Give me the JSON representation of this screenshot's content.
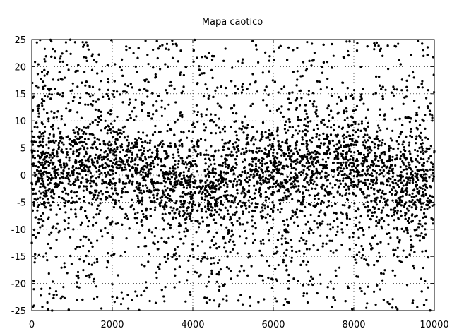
{
  "chart_data": {
    "type": "scatter",
    "title": "Mapa caotico",
    "xlabel": "",
    "ylabel": "",
    "xlim": [
      0,
      10000
    ],
    "ylim": [
      -25,
      25
    ],
    "x_ticks": [
      0,
      2000,
      4000,
      6000,
      8000,
      10000
    ],
    "y_ticks": [
      25,
      20,
      15,
      10,
      5,
      0,
      -5,
      -10,
      -15,
      -20,
      -25
    ],
    "grid": true,
    "legend": "none",
    "marker_color": "#000000",
    "series": [
      {
        "points_sampled": [
          [
            0,
            4.6
          ],
          [
            120,
            -1.2
          ],
          [
            260,
            12.8
          ],
          [
            410,
            -8.1
          ],
          [
            560,
            0.7
          ],
          [
            700,
            21.5
          ],
          [
            850,
            -3.4
          ],
          [
            1000,
            6.2
          ],
          [
            1150,
            -17.9
          ],
          [
            1300,
            1.9
          ],
          [
            1450,
            9.4
          ],
          [
            1600,
            -0.6
          ],
          [
            1750,
            -11.3
          ],
          [
            1900,
            15.7
          ],
          [
            2050,
            2.8
          ],
          [
            2200,
            -5.9
          ],
          [
            2350,
            23.1
          ],
          [
            2500,
            -1.7
          ],
          [
            2650,
            7.9
          ],
          [
            2800,
            -21.4
          ],
          [
            2950,
            0.3
          ],
          [
            3100,
            13.6
          ],
          [
            3250,
            -7.2
          ],
          [
            3400,
            3.5
          ],
          [
            3550,
            -14.8
          ],
          [
            3700,
            18.9
          ],
          [
            3850,
            -2.4
          ],
          [
            4000,
            5.1
          ],
          [
            4150,
            -9.6
          ],
          [
            4300,
            0.9
          ],
          [
            4450,
            11.2
          ],
          [
            4600,
            -19.7
          ],
          [
            4750,
            2.2
          ],
          [
            4900,
            -4.8
          ],
          [
            5050,
            16.4
          ],
          [
            5200,
            -0.2
          ],
          [
            5350,
            8.7
          ],
          [
            5500,
            -12.5
          ],
          [
            5650,
            1.4
          ],
          [
            5800,
            22.6
          ],
          [
            5950,
            -6.3
          ],
          [
            6100,
            4.0
          ],
          [
            6250,
            -16.1
          ],
          [
            6400,
            10.3
          ],
          [
            6550,
            -1.0
          ],
          [
            6700,
            14.2
          ],
          [
            6850,
            -23.5
          ],
          [
            7000,
            3.1
          ],
          [
            7150,
            -8.9
          ],
          [
            7300,
            0.5
          ],
          [
            7450,
            19.8
          ],
          [
            7600,
            -3.0
          ],
          [
            7750,
            6.8
          ],
          [
            7900,
            -13.7
          ],
          [
            8050,
            2.6
          ],
          [
            8200,
            9.9
          ],
          [
            8350,
            -20.6
          ],
          [
            8500,
            -0.9
          ],
          [
            8650,
            12.1
          ],
          [
            8800,
            -5.4
          ],
          [
            8950,
            1.8
          ],
          [
            9100,
            24.2
          ],
          [
            9250,
            -10.4
          ],
          [
            9400,
            3.9
          ],
          [
            9550,
            -2.1
          ],
          [
            9700,
            17.3
          ],
          [
            9850,
            -15.2
          ],
          [
            10000,
            4.4
          ]
        ],
        "distribution": "dense scatter of 10000 points, concentrated near y=0 with slowly drifting clusters"
      }
    ]
  }
}
